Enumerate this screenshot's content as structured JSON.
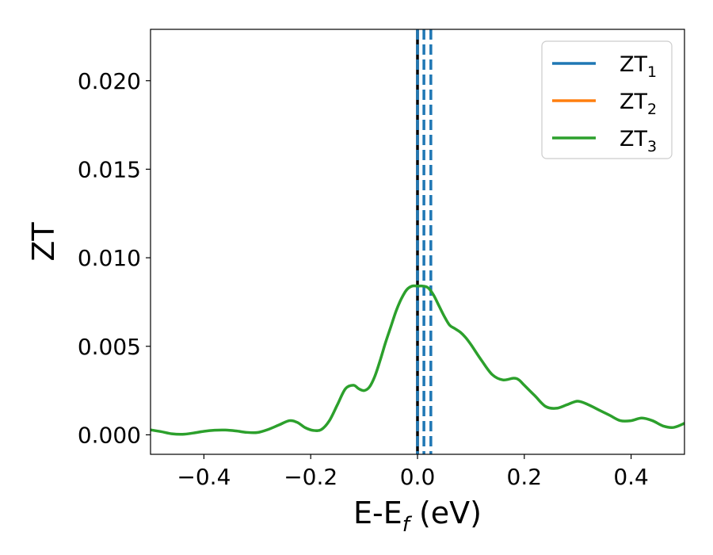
{
  "chart_data": {
    "type": "line",
    "xlabel": {
      "main": "E-E",
      "sub": "f",
      "suffix": " (eV)"
    },
    "ylabel": "ZT",
    "xlim": [
      -0.5,
      0.5
    ],
    "ylim": [
      -0.0011,
      0.0229
    ],
    "x_ticks": [
      -0.4,
      -0.2,
      0.0,
      0.2,
      0.4
    ],
    "x_tick_labels": [
      "−0.4",
      "−0.2",
      "0.0",
      "0.2",
      "0.4"
    ],
    "y_ticks": [
      0.0,
      0.005,
      0.01,
      0.015,
      0.02
    ],
    "y_tick_labels": [
      "0.000",
      "0.005",
      "0.010",
      "0.015",
      "0.020"
    ],
    "grid": false,
    "legend_position": "top-right",
    "series": [
      {
        "name": "ZT",
        "sub": "1",
        "color": "#1f77b4"
      },
      {
        "name": "ZT",
        "sub": "2",
        "color": "#ff7f0e"
      },
      {
        "name": "ZT",
        "sub": "3",
        "color": "#2ca02c",
        "x": [
          -0.5,
          -0.48,
          -0.46,
          -0.44,
          -0.42,
          -0.4,
          -0.38,
          -0.36,
          -0.34,
          -0.32,
          -0.3,
          -0.28,
          -0.26,
          -0.24,
          -0.225,
          -0.21,
          -0.195,
          -0.18,
          -0.165,
          -0.15,
          -0.135,
          -0.12,
          -0.11,
          -0.1,
          -0.09,
          -0.08,
          -0.07,
          -0.06,
          -0.05,
          -0.04,
          -0.03,
          -0.02,
          -0.01,
          0.0,
          0.01,
          0.02,
          0.03,
          0.04,
          0.05,
          0.06,
          0.07,
          0.08,
          0.09,
          0.1,
          0.12,
          0.14,
          0.16,
          0.18,
          0.19,
          0.2,
          0.22,
          0.24,
          0.26,
          0.28,
          0.3,
          0.32,
          0.34,
          0.36,
          0.38,
          0.4,
          0.42,
          0.44,
          0.46,
          0.48,
          0.5
        ],
        "y": [
          0.00028,
          0.00018,
          6e-05,
          3e-05,
          0.0001,
          0.0002,
          0.00026,
          0.00027,
          0.00022,
          0.00014,
          0.00013,
          0.0003,
          0.00055,
          0.0008,
          0.0007,
          0.0004,
          0.00025,
          0.0003,
          0.0008,
          0.0017,
          0.0026,
          0.0028,
          0.0026,
          0.0025,
          0.0027,
          0.0033,
          0.0042,
          0.0052,
          0.0061,
          0.007,
          0.0077,
          0.0082,
          0.0084,
          0.0084,
          0.0084,
          0.0083,
          0.0079,
          0.0073,
          0.0067,
          0.0062,
          0.006,
          0.0058,
          0.0055,
          0.0051,
          0.0042,
          0.0034,
          0.0031,
          0.0032,
          0.0031,
          0.0028,
          0.0022,
          0.0016,
          0.0015,
          0.0017,
          0.0019,
          0.0017,
          0.0014,
          0.0011,
          0.0008,
          0.0008,
          0.00095,
          0.0008,
          0.0005,
          0.00042,
          0.00065
        ]
      }
    ],
    "vlines": [
      {
        "x": 0.0,
        "color": "#000000",
        "style": "solid"
      },
      {
        "x": 0.0,
        "color": "#1f77b4",
        "style": "dashed"
      },
      {
        "x": 0.012,
        "color": "#1f77b4",
        "style": "dashed"
      },
      {
        "x": 0.025,
        "color": "#1f77b4",
        "style": "dashed"
      }
    ]
  }
}
